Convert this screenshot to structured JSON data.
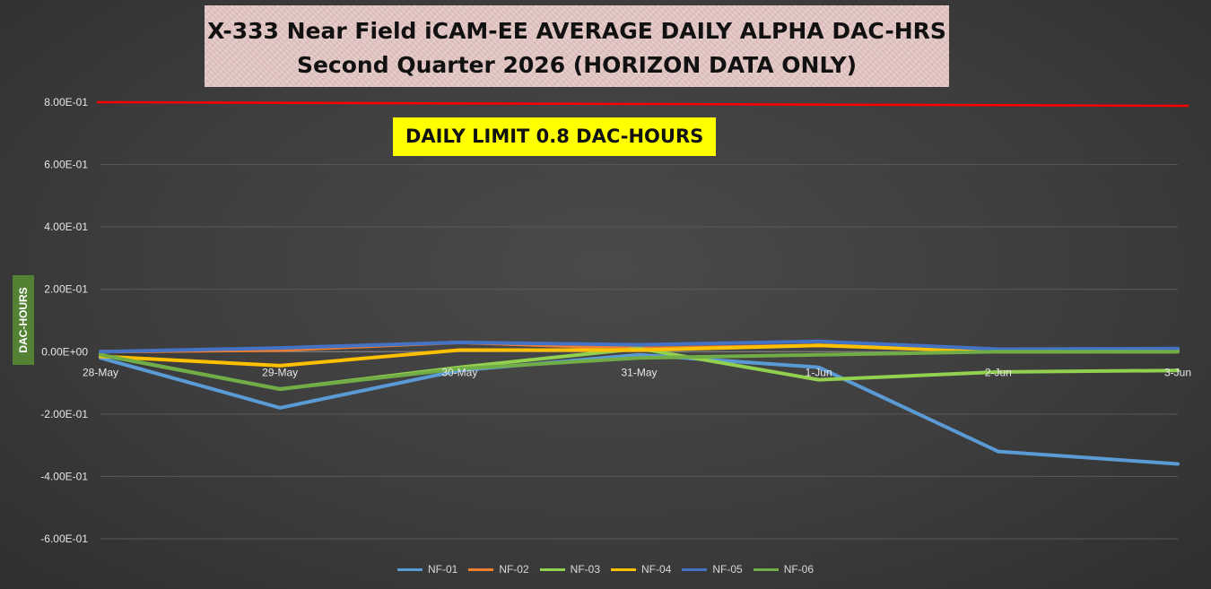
{
  "chart_data": {
    "type": "line",
    "title": "X-333 Near Field iCAM-EE AVERAGE DAILY ALPHA DAC-HRS",
    "subtitle": "Second Quarter 2026 (HORIZON DATA ONLY)",
    "ylabel": "DAC-HOURS",
    "xlabel": "",
    "categories": [
      "28-May",
      "29-May",
      "30-May",
      "31-May",
      "1-Jun",
      "2-Jun",
      "3-Jun"
    ],
    "yticks": [
      {
        "value": 0.8,
        "label": "8.00E-01"
      },
      {
        "value": 0.6,
        "label": "6.00E-01"
      },
      {
        "value": 0.4,
        "label": "4.00E-01"
      },
      {
        "value": 0.2,
        "label": "2.00E-01"
      },
      {
        "value": 0.0,
        "label": "0.00E+00"
      },
      {
        "value": -0.2,
        "label": "-2.00E-01"
      },
      {
        "value": -0.4,
        "label": "-4.00E-01"
      },
      {
        "value": -0.6,
        "label": "-6.00E-01"
      }
    ],
    "ylim": [
      -0.7,
      0.8
    ],
    "grid": true,
    "legend_position": "bottom",
    "limit_line": {
      "value": 0.8,
      "label": "DAILY LIMIT 0.8 DAC-HOURS",
      "color": "#ff0000"
    },
    "series": [
      {
        "name": "NF-01",
        "color": "#5b9bd5",
        "values": [
          -0.02,
          -0.18,
          -0.06,
          -0.01,
          -0.05,
          -0.32,
          -0.36
        ]
      },
      {
        "name": "NF-02",
        "color": "#ed7d31",
        "values": [
          0.0,
          0.005,
          0.03,
          0.01,
          0.02,
          0.005,
          0.005
        ]
      },
      {
        "name": "NF-03",
        "color": "#92d050",
        "values": [
          -0.01,
          -0.12,
          -0.05,
          0.01,
          -0.09,
          -0.065,
          -0.06
        ]
      },
      {
        "name": "NF-04",
        "color": "#ffc000",
        "values": [
          -0.015,
          -0.045,
          0.005,
          0.005,
          0.02,
          0.0,
          0.0
        ]
      },
      {
        "name": "NF-05",
        "color": "#4472c4",
        "values": [
          0.0,
          0.012,
          0.03,
          0.022,
          0.033,
          0.008,
          0.01
        ]
      },
      {
        "name": "NF-06",
        "color": "#70ad47",
        "values": [
          -0.01,
          -0.12,
          -0.055,
          -0.02,
          -0.01,
          0.0,
          0.0
        ]
      }
    ]
  }
}
